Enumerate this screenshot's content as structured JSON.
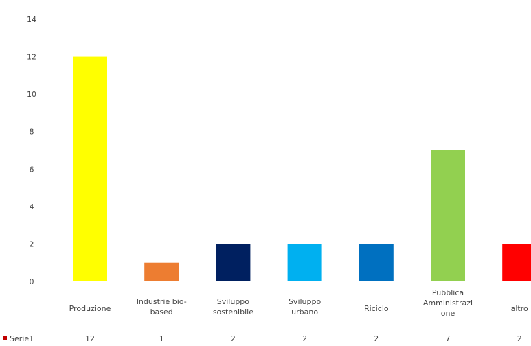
{
  "chart_data": {
    "type": "bar",
    "title": "",
    "xlabel": "",
    "ylabel": "",
    "ylim": [
      0,
      14
    ],
    "yticks": [
      0,
      2,
      4,
      6,
      8,
      10,
      12,
      14
    ],
    "grid": false,
    "legend": "data-table-bottom",
    "categories": [
      [
        "Produzione"
      ],
      [
        "Industrie bio-",
        "based"
      ],
      [
        "Sviluppo",
        "sostenibile"
      ],
      [
        "Sviluppo",
        "urbano"
      ],
      [
        "Riciclo"
      ],
      [
        "Pubblica",
        "Amministrazi",
        "one"
      ],
      [
        "altro"
      ]
    ],
    "series": [
      {
        "name": "Serie1",
        "values": [
          12,
          1,
          2,
          2,
          2,
          7,
          2
        ]
      }
    ],
    "bar_colors": [
      "#ffff00",
      "#ed7d31",
      "#002060",
      "#00b0f0",
      "#0070c0",
      "#92d050",
      "#ff0000"
    ],
    "legend_marker_color": "#c00000"
  }
}
